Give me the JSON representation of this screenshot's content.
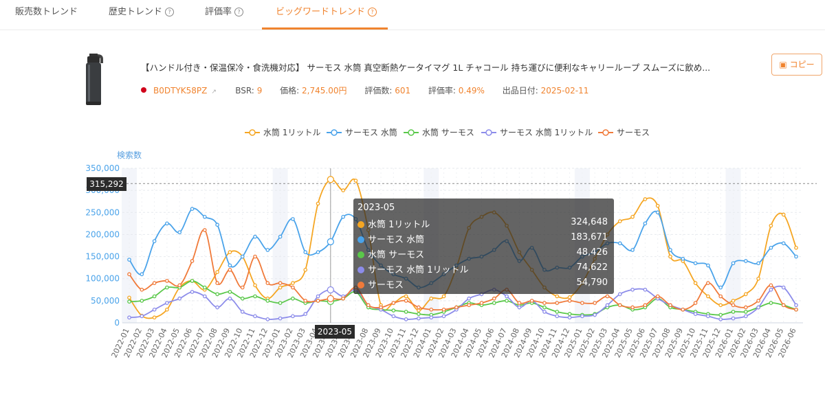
{
  "tabs": [
    {
      "label": "販売数トレンド",
      "help": false,
      "active": false
    },
    {
      "label": "歴史トレンド",
      "help": true,
      "active": false
    },
    {
      "label": "評価率",
      "help": true,
      "active": false
    },
    {
      "label": "ビッグワードトレンド",
      "help": true,
      "active": true
    }
  ],
  "product": {
    "title": "【ハンドル付き・保温保冷・食洗機対応】 サーモス 水筒 真空断熱ケータイマグ 1L チャコール 持ち運びに便利なキャリーループ スムーズに飲め...",
    "asin": "B0DTYK58PZ",
    "bsr_label": "BSR:",
    "bsr_value": "9",
    "price_label": "価格:",
    "price_value": "2,745.00円",
    "reviews_label": "評価数:",
    "reviews_value": "601",
    "rating_label": "評価率:",
    "rating_value": "0.49%",
    "date_label": "出品日付:",
    "date_value": "2025-02-11"
  },
  "copy_label": "コピー",
  "colors": {
    "accent": "#f0832e",
    "s1": "#f5a623",
    "s2": "#4aa3ea",
    "s3": "#5ac84a",
    "s4": "#8c8cea",
    "s5": "#f07a3a"
  },
  "tooltip": {
    "title": "2023-05",
    "rows": [
      {
        "name": "水筒 1リットル",
        "value": "324,648"
      },
      {
        "name": "サーモス 水筒",
        "value": "183,671"
      },
      {
        "name": "水筒 サーモス",
        "value": "48,426"
      },
      {
        "name": "サーモス 水筒 1リットル",
        "value": "74,622"
      },
      {
        "name": "サーモス",
        "value": "54,790"
      }
    ]
  },
  "y_pointer": "315,292",
  "x_pointer": "2023-05",
  "chart_data": {
    "type": "line",
    "ylabel": "検索数",
    "ylim": [
      0,
      350000
    ],
    "yticks": [
      "0",
      "50,000",
      "100,000",
      "150,000",
      "200,000",
      "250,000",
      "300,000",
      "350,000"
    ],
    "legend_position": "top-center",
    "grid": true,
    "x": [
      "2022-01",
      "2022-02",
      "2022-03",
      "2022-04",
      "2022-05",
      "2022-06",
      "2022-07",
      "2022-08",
      "2022-09",
      "2022-10",
      "2022-11",
      "2022-12",
      "2023-01",
      "2023-02",
      "2023-03",
      "2023-04",
      "2023-05",
      "2023-06",
      "2023-07",
      "2023-08",
      "2023-09",
      "2023-10",
      "2023-11",
      "2023-12",
      "2024-01",
      "2024-02",
      "2024-03",
      "2024-04",
      "2024-05",
      "2024-06",
      "2024-07",
      "2024-08",
      "2024-09",
      "2024-10",
      "2024-11",
      "2024-12",
      "2025-01",
      "2025-02",
      "2025-03",
      "2025-04",
      "2025-05",
      "2025-06",
      "2025-07",
      "2025-08",
      "2025-09",
      "2025-10",
      "2025-11",
      "2025-12",
      "2026-01",
      "2026-02",
      "2026-03",
      "2026-04",
      "2026-05",
      "2026-06"
    ],
    "series": [
      {
        "name": "水筒 1リットル",
        "values": [
          57000,
          16000,
          12000,
          30000,
          80000,
          95000,
          75000,
          115000,
          160000,
          150000,
          85000,
          55000,
          80000,
          90000,
          120000,
          270000,
          324648,
          300000,
          322000,
          210000,
          40000,
          45000,
          60000,
          28000,
          55000,
          60000,
          125000,
          215000,
          240000,
          250000,
          220000,
          160000,
          120000,
          80000,
          60000,
          58000,
          90000,
          145000,
          200000,
          230000,
          240000,
          280000,
          265000,
          150000,
          140000,
          90000,
          60000,
          40000,
          50000,
          65000,
          100000,
          220000,
          245000,
          170000
        ]
      },
      {
        "name": "サーモス 水筒",
        "values": [
          143000,
          110000,
          185000,
          225000,
          205000,
          258000,
          240000,
          222000,
          130000,
          150000,
          195000,
          165000,
          195000,
          235000,
          160000,
          160000,
          183671,
          240000,
          235000,
          165000,
          130000,
          110000,
          100000,
          80000,
          90000,
          110000,
          130000,
          145000,
          150000,
          165000,
          185000,
          140000,
          170000,
          120000,
          125000,
          125000,
          150000,
          160000,
          180000,
          180000,
          165000,
          225000,
          250000,
          165000,
          145000,
          135000,
          130000,
          80000,
          135000,
          140000,
          135000,
          170000,
          180000,
          150000
        ]
      },
      {
        "name": "水筒 サーモス",
        "values": [
          48000,
          50000,
          60000,
          80000,
          80000,
          95000,
          80000,
          65000,
          70000,
          55000,
          60000,
          50000,
          45000,
          55000,
          45000,
          50000,
          48426,
          55000,
          70000,
          35000,
          30000,
          28000,
          25000,
          20000,
          18000,
          25000,
          35000,
          45000,
          40000,
          45000,
          50000,
          40000,
          45000,
          35000,
          25000,
          20000,
          18000,
          20000,
          35000,
          40000,
          30000,
          35000,
          55000,
          35000,
          30000,
          25000,
          20000,
          18000,
          25000,
          25000,
          35000,
          45000,
          40000,
          30000
        ]
      },
      {
        "name": "サーモス 水筒 1リットル",
        "values": [
          12000,
          15000,
          30000,
          45000,
          55000,
          70000,
          60000,
          35000,
          55000,
          25000,
          15000,
          8000,
          10000,
          15000,
          20000,
          60000,
          74622,
          60000,
          75000,
          40000,
          30000,
          15000,
          8000,
          10000,
          12000,
          15000,
          30000,
          55000,
          65000,
          75000,
          60000,
          35000,
          50000,
          25000,
          15000,
          12000,
          15000,
          18000,
          40000,
          65000,
          75000,
          75000,
          55000,
          40000,
          30000,
          20000,
          15000,
          8000,
          10000,
          15000,
          35000,
          75000,
          80000,
          40000
        ]
      },
      {
        "name": "サーモス",
        "values": [
          110000,
          75000,
          90000,
          95000,
          85000,
          140000,
          210000,
          90000,
          120000,
          80000,
          150000,
          90000,
          90000,
          80000,
          50000,
          50000,
          54790,
          55000,
          80000,
          40000,
          35000,
          45000,
          50000,
          35000,
          30000,
          30000,
          35000,
          40000,
          45000,
          55000,
          75000,
          45000,
          50000,
          45000,
          45000,
          50000,
          45000,
          45000,
          60000,
          40000,
          35000,
          40000,
          60000,
          40000,
          30000,
          45000,
          90000,
          60000,
          40000,
          35000,
          50000,
          85000,
          40000,
          30000
        ]
      }
    ]
  }
}
